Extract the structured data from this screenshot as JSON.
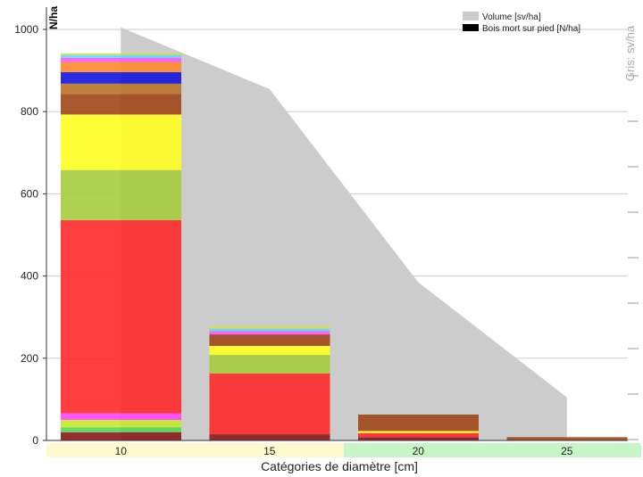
{
  "chart_data": {
    "type": "bar",
    "stacked": true,
    "xlabel": "Catégories de diamètre [cm]",
    "ylabel": "N/ha",
    "right_axis_label": "Gris: sv/ha",
    "ylim": [
      0,
      1050
    ],
    "yticks": [
      0,
      200,
      400,
      600,
      800,
      1000
    ],
    "categories": [
      "10",
      "15",
      "20",
      "25"
    ],
    "category_band_colors": [
      "#fffacd",
      "#fffacd",
      "#c8f5c8",
      "#c8f5c8"
    ],
    "grid": "horizontal",
    "legend_position": "top-right",
    "legend": [
      {
        "label": "Volume [sv/ha]",
        "color": "#cccccc"
      },
      {
        "label": "Bois mort sur pied [N/ha]",
        "color": "#000000"
      }
    ],
    "volume_area": {
      "name": "Volume [sv/ha]",
      "color": "#cccccc",
      "points": [
        [
          10,
          1005
        ],
        [
          15,
          855
        ],
        [
          20,
          385
        ],
        [
          25,
          105
        ]
      ]
    },
    "stack_colors": [
      "#8b1a1a",
      "#55d655",
      "#c5e829",
      "#ff44ff",
      "#ff2a2a",
      "#a5cd3c",
      "#ffff22",
      "#a0461a",
      "#b87327",
      "#1414dd",
      "#ff8a2a",
      "#ff55ff",
      "#55ddff",
      "#dddd44"
    ],
    "stacks": [
      {
        "category": "10",
        "segments": [
          {
            "color": "#8b1a1a",
            "value": 20
          },
          {
            "color": "#55d655",
            "value": 12
          },
          {
            "color": "#c5e829",
            "value": 18
          },
          {
            "color": "#ff44ff",
            "value": 16
          },
          {
            "color": "#ff2a2a",
            "value": 470
          },
          {
            "color": "#a5cd3c",
            "value": 122
          },
          {
            "color": "#ffff22",
            "value": 135
          },
          {
            "color": "#a0461a",
            "value": 50
          },
          {
            "color": "#b87327",
            "value": 25
          },
          {
            "color": "#1414dd",
            "value": 28
          },
          {
            "color": "#ff8a2a",
            "value": 25
          },
          {
            "color": "#ff55ff",
            "value": 10
          },
          {
            "color": "#55ddff",
            "value": 7
          },
          {
            "color": "#dddd44",
            "value": 4
          }
        ]
      },
      {
        "category": "15",
        "segments": [
          {
            "color": "#8b1a1a",
            "value": 15
          },
          {
            "color": "#ff2a2a",
            "value": 148
          },
          {
            "color": "#a5cd3c",
            "value": 45
          },
          {
            "color": "#ffff22",
            "value": 22
          },
          {
            "color": "#a0461a",
            "value": 28
          },
          {
            "color": "#ff55ff",
            "value": 8
          },
          {
            "color": "#55ddff",
            "value": 6
          },
          {
            "color": "#dddd44",
            "value": 6
          }
        ]
      },
      {
        "category": "20",
        "segments": [
          {
            "color": "#8b1a1a",
            "value": 8
          },
          {
            "color": "#ff2a2a",
            "value": 10
          },
          {
            "color": "#ffff22",
            "value": 5
          },
          {
            "color": "#a0461a",
            "value": 40
          }
        ]
      },
      {
        "category": "25",
        "segments": [
          {
            "color": "#a0461a",
            "value": 8
          }
        ]
      }
    ]
  }
}
